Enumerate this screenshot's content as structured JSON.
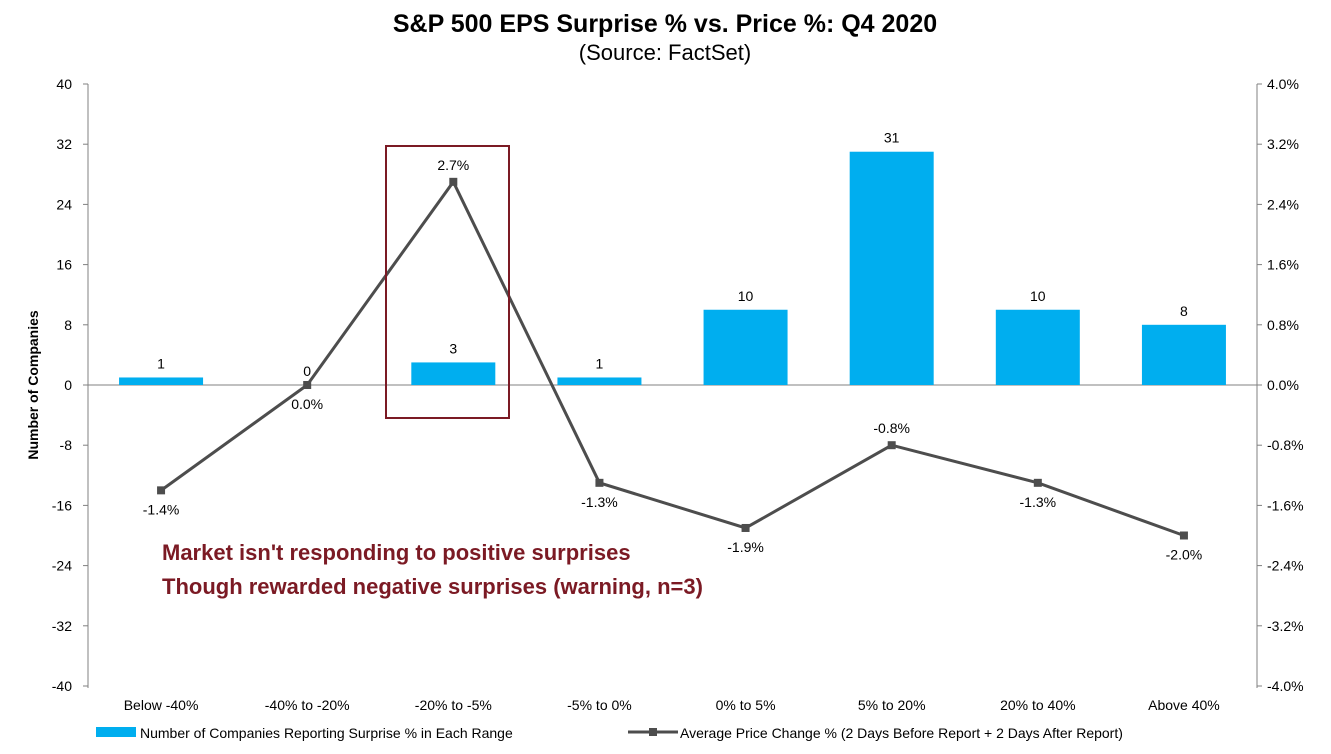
{
  "chart_data": {
    "type": "bar+line",
    "title": "S&P 500 EPS Surprise % vs. Price %: Q4 2020",
    "subtitle": "(Source: FactSet)",
    "categories": [
      "Below -40%",
      "-40% to -20%",
      "-20% to -5%",
      "-5% to 0%",
      "0% to 5%",
      "5% to 20%",
      "20% to 40%",
      "Above 40%"
    ],
    "series": [
      {
        "name": "Number of Companies Reporting Surprise % in Each Range",
        "type": "bar",
        "axis": "left",
        "color": "#00aeef",
        "values": [
          1,
          0,
          3,
          1,
          10,
          31,
          10,
          8
        ],
        "labels": [
          "1",
          "0",
          "3",
          "1",
          "10",
          "31",
          "10",
          "8"
        ]
      },
      {
        "name": "Average Price Change % (2 Days Before Report + 2 Days After Report)",
        "type": "line",
        "axis": "right",
        "color": "#4d4d4d",
        "values": [
          -1.4,
          0.0,
          2.7,
          -1.3,
          -1.9,
          -0.8,
          -1.3,
          -2.0
        ],
        "labels": [
          "-1.4%",
          "0.0%",
          "2.7%",
          "-1.3%",
          "-1.9%",
          "-0.8%",
          "-1.3%",
          "-2.0%"
        ]
      }
    ],
    "ylabel": "Number of Companies",
    "ylim": [
      -40,
      40
    ],
    "y_ticks": [
      "40",
      "32",
      "24",
      "16",
      "8",
      "0",
      "-8",
      "-16",
      "-24",
      "-32",
      "-40"
    ],
    "y2lim": [
      -4.0,
      4.0
    ],
    "y2_ticks": [
      "4.0%",
      "3.2%",
      "2.4%",
      "1.6%",
      "0.8%",
      "0.0%",
      "-0.8%",
      "-1.6%",
      "-2.4%",
      "-3.2%",
      "-4.0%"
    ],
    "legend_position": "bottom",
    "highlight_category": "-20% to -5%",
    "annotation_lines": [
      "Market isn't responding to positive surprises",
      "Though rewarded negative surprises (warning, n=3)"
    ],
    "annotation_color": "#7b1a24"
  }
}
